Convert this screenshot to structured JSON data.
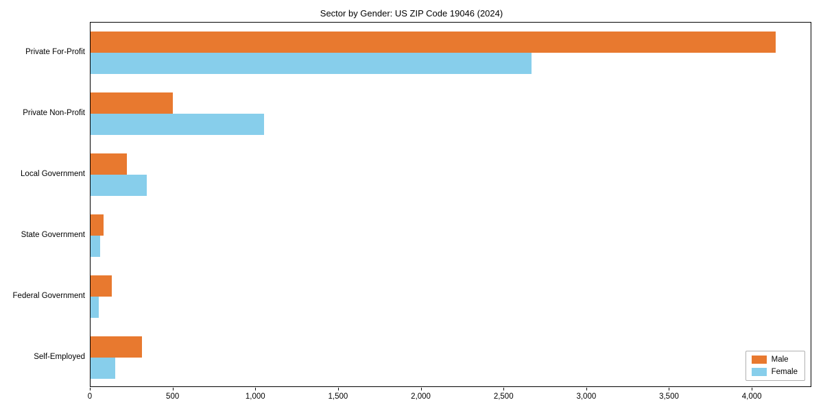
{
  "title": "Sector by Gender: US ZIP Code 19046 (2024)",
  "colors": {
    "male": "#e8792f",
    "female": "#87ceeb",
    "axis": "#000000",
    "background": "#ffffff"
  },
  "legend": {
    "entries": [
      {
        "label": "Male",
        "color": "#e8792f"
      },
      {
        "label": "Female",
        "color": "#87ceeb"
      }
    ],
    "position": "lower right"
  },
  "chart_data": {
    "type": "bar",
    "orientation": "horizontal",
    "title": "Sector by Gender: US ZIP Code 19046 (2024)",
    "xlabel": "",
    "ylabel": "",
    "categories": [
      "Private For-Profit",
      "Private Non-Profit",
      "Local Government",
      "State Government",
      "Federal Government",
      "Self-Employed"
    ],
    "series": [
      {
        "name": "Male",
        "color": "#e8792f",
        "values": [
          4150,
          500,
          220,
          80,
          130,
          310
        ]
      },
      {
        "name": "Female",
        "color": "#87ceeb",
        "values": [
          2670,
          1050,
          340,
          60,
          50,
          150
        ]
      }
    ],
    "xlim": [
      0,
      4360
    ],
    "xticks": [
      0,
      500,
      1000,
      1500,
      2000,
      2500,
      3000,
      3500,
      4000
    ],
    "xtick_labels": [
      "0",
      "500",
      "1,000",
      "1,500",
      "2,000",
      "2,500",
      "3,000",
      "3,500",
      "4,000"
    ],
    "grid": false,
    "legend_position": "lower right"
  }
}
